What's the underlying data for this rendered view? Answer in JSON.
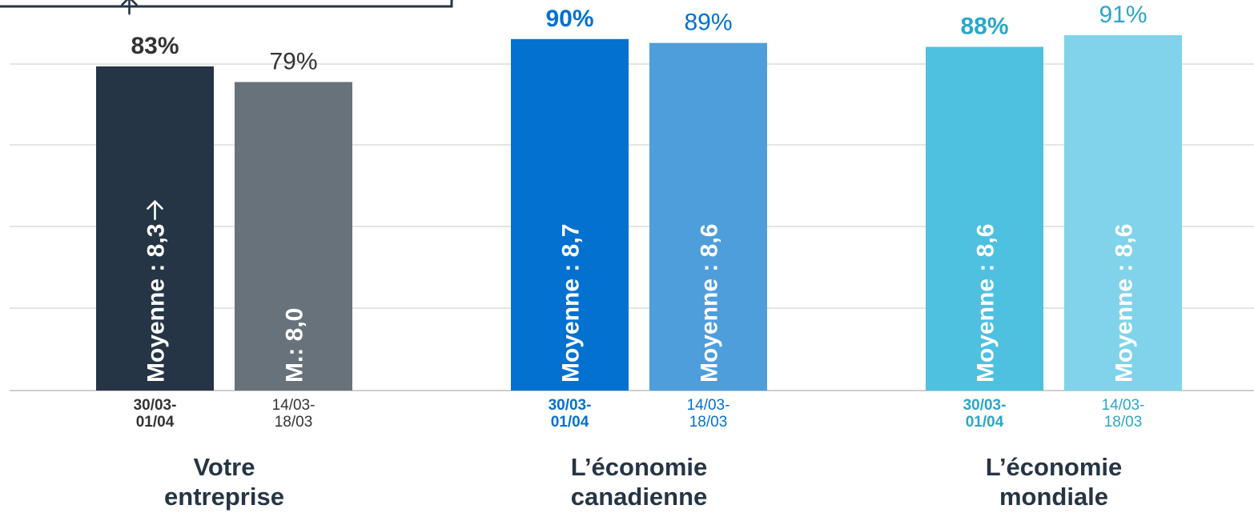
{
  "chart_data": {
    "type": "bar",
    "ylim": [
      0,
      100
    ],
    "grid": true,
    "groups": [
      {
        "name": "Votre entreprise",
        "name_lines": [
          "Votre",
          "entreprise"
        ],
        "bars": [
          {
            "period_lines": [
              "30/03-",
              "01/04"
            ],
            "value": 83,
            "value_label": "83%",
            "mean_label": "Moyenne : 8,3",
            "trend_arrow": "up",
            "mean_arrow": "up",
            "color": "#263545",
            "label_color": "#333333",
            "bold": true
          },
          {
            "period_lines": [
              "14/03-",
              "18/03"
            ],
            "value": 79,
            "value_label": "79%",
            "mean_label": "M.: 8,0",
            "color": "#68727b",
            "label_color": "#333333",
            "bold": false
          }
        ]
      },
      {
        "name": "L’économie canadienne",
        "name_lines": [
          "L’économie",
          "canadienne"
        ],
        "bars": [
          {
            "period_lines": [
              "30/03-",
              "01/04"
            ],
            "value": 90,
            "value_label": "90%",
            "mean_label": "Moyenne : 8,7",
            "color": "#0271cf",
            "label_color": "#0271cf",
            "bold": true
          },
          {
            "period_lines": [
              "14/03-",
              "18/03"
            ],
            "value": 89,
            "value_label": "89%",
            "mean_label": "Moyenne : 8,6",
            "color": "#4e9edb",
            "label_color": "#0271cf",
            "bold": false
          }
        ]
      },
      {
        "name": "L’économie mondiale",
        "name_lines": [
          "L’économie",
          "mondiale"
        ],
        "bars": [
          {
            "period_lines": [
              "30/03-",
              "01/04"
            ],
            "value": 88,
            "value_label": "88%",
            "mean_label": "Moyenne : 8,6",
            "color": "#4ec0e0",
            "label_color": "#2aa7c9",
            "bold": true
          },
          {
            "period_lines": [
              "14/03-",
              "18/03"
            ],
            "value": 91,
            "value_label": "91%",
            "mean_label": "Moyenne : 8,6",
            "color": "#80d3ea",
            "label_color": "#2aa7c9",
            "bold": false
          }
        ]
      }
    ]
  }
}
